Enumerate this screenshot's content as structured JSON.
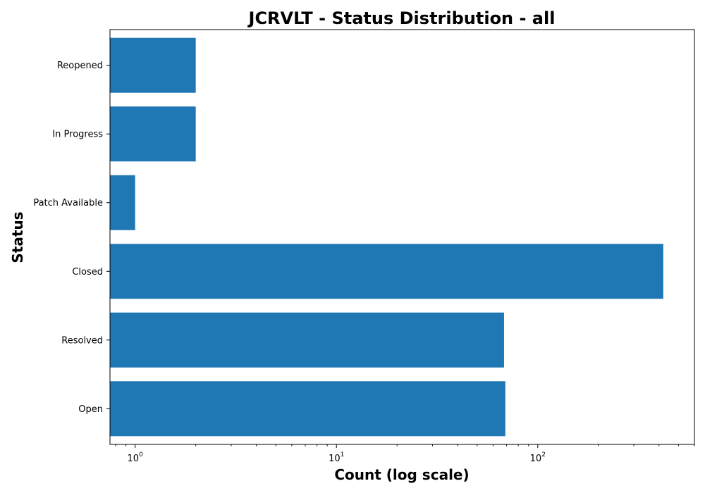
{
  "chart_data": {
    "type": "bar",
    "orientation": "horizontal",
    "title": "JCRVLT - Status Distribution - all",
    "xlabel": "Count (log scale)",
    "ylabel": "Status",
    "xscale": "log",
    "xlim": [
      0.75,
      600
    ],
    "categories": [
      "Open",
      "Resolved",
      "Closed",
      "Patch Available",
      "In Progress",
      "Reopened"
    ],
    "values": [
      69,
      68,
      420,
      1,
      2,
      2
    ],
    "bar_color": "#1f77b4",
    "x_major_ticks": [
      {
        "value": 1,
        "base": "10",
        "exp": "0"
      },
      {
        "value": 10,
        "base": "10",
        "exp": "1"
      },
      {
        "value": 100,
        "base": "10",
        "exp": "2"
      }
    ],
    "grid": false
  }
}
